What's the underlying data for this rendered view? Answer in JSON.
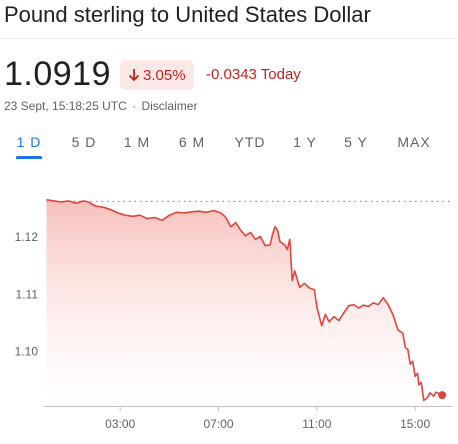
{
  "header": {
    "title": "Pound sterling to United States Dollar"
  },
  "quote": {
    "price": "1.0919",
    "percent_change": "3.05%",
    "abs_change": "-0.0343 Today",
    "timestamp": "23 Sept, 15:18:25 UTC",
    "separator": "·",
    "disclaimer": "Disclaimer",
    "direction_icon": "arrow-down-icon"
  },
  "tabs": [
    {
      "label": "1 D",
      "active": true
    },
    {
      "label": "5 D",
      "active": false
    },
    {
      "label": "1 M",
      "active": false
    },
    {
      "label": "6 M",
      "active": false
    },
    {
      "label": "YTD",
      "active": false
    },
    {
      "label": "1 Y",
      "active": false
    },
    {
      "label": "5 Y",
      "active": false
    },
    {
      "label": "MAX",
      "active": false
    }
  ],
  "colors": {
    "negative": "#c5221f",
    "line": "#e0463d",
    "accent": "#1a73e8",
    "axis_text": "#5f6368"
  },
  "chart_data": {
    "type": "area",
    "x_unit": "hours (UTC)",
    "x_ticks": [
      3,
      7,
      11,
      15
    ],
    "x_tick_labels": [
      "03:00",
      "07:00",
      "11:00",
      "15:00"
    ],
    "y_ticks": [
      1.1,
      1.11,
      1.12
    ],
    "y_tick_labels": [
      "1.10",
      "1.11",
      "1.12"
    ],
    "xlim": [
      -0.1,
      16.5
    ],
    "ylim": [
      1.0905,
      1.1275
    ],
    "previous_close": 1.1262,
    "grid": false,
    "legend": "none",
    "points": [
      [
        0.0,
        1.1265
      ],
      [
        0.3,
        1.1263
      ],
      [
        0.6,
        1.1261
      ],
      [
        0.9,
        1.1263
      ],
      [
        1.2,
        1.1259
      ],
      [
        1.5,
        1.1263
      ],
      [
        1.7,
        1.1261
      ],
      [
        2.0,
        1.1254
      ],
      [
        2.3,
        1.1252
      ],
      [
        2.6,
        1.1248
      ],
      [
        2.9,
        1.1242
      ],
      [
        3.2,
        1.1238
      ],
      [
        3.5,
        1.1236
      ],
      [
        3.8,
        1.1238
      ],
      [
        4.1,
        1.1232
      ],
      [
        4.4,
        1.1234
      ],
      [
        4.7,
        1.1229
      ],
      [
        5.0,
        1.1238
      ],
      [
        5.3,
        1.1243
      ],
      [
        5.6,
        1.1242
      ],
      [
        5.9,
        1.1244
      ],
      [
        6.2,
        1.1245
      ],
      [
        6.5,
        1.1243
      ],
      [
        6.8,
        1.1246
      ],
      [
        7.1,
        1.1242
      ],
      [
        7.3,
        1.1234
      ],
      [
        7.5,
        1.1218
      ],
      [
        7.7,
        1.1225
      ],
      [
        7.9,
        1.1212
      ],
      [
        8.1,
        1.1202
      ],
      [
        8.3,
        1.1208
      ],
      [
        8.5,
        1.1196
      ],
      [
        8.7,
        1.1201
      ],
      [
        8.9,
        1.1185
      ],
      [
        9.1,
        1.1186
      ],
      [
        9.2,
        1.1205
      ],
      [
        9.3,
        1.1218
      ],
      [
        9.4,
        1.1212
      ],
      [
        9.5,
        1.1192
      ],
      [
        9.7,
        1.1186
      ],
      [
        9.8,
        1.1178
      ],
      [
        9.9,
        1.1196
      ],
      [
        10.0,
        1.1124
      ],
      [
        10.1,
        1.1141
      ],
      [
        10.3,
        1.1112
      ],
      [
        10.5,
        1.1119
      ],
      [
        10.7,
        1.1111
      ],
      [
        10.9,
        1.1108
      ],
      [
        11.0,
        1.1078
      ],
      [
        11.2,
        1.1045
      ],
      [
        11.35,
        1.1065
      ],
      [
        11.5,
        1.1052
      ],
      [
        11.7,
        1.1061
      ],
      [
        11.9,
        1.1054
      ],
      [
        12.1,
        1.1068
      ],
      [
        12.3,
        1.108
      ],
      [
        12.5,
        1.1082
      ],
      [
        12.7,
        1.1076
      ],
      [
        12.9,
        1.1081
      ],
      [
        13.1,
        1.1079
      ],
      [
        13.3,
        1.1085
      ],
      [
        13.5,
        1.1082
      ],
      [
        13.7,
        1.1094
      ],
      [
        13.9,
        1.1082
      ],
      [
        14.1,
        1.1064
      ],
      [
        14.3,
        1.1038
      ],
      [
        14.5,
        1.1032
      ],
      [
        14.6,
        1.1007
      ],
      [
        14.7,
        1.1004
      ],
      [
        14.8,
        1.0978
      ],
      [
        14.9,
        1.0983
      ],
      [
        15.0,
        1.0957
      ],
      [
        15.1,
        1.0962
      ],
      [
        15.15,
        1.0942
      ],
      [
        15.25,
        1.0946
      ],
      [
        15.35,
        1.0915
      ],
      [
        15.45,
        1.0918
      ],
      [
        15.5,
        1.092
      ],
      [
        15.6,
        1.0928
      ],
      [
        15.75,
        1.0922
      ],
      [
        15.85,
        1.0929
      ],
      [
        16.0,
        1.0926
      ],
      [
        16.1,
        1.0924
      ]
    ]
  }
}
